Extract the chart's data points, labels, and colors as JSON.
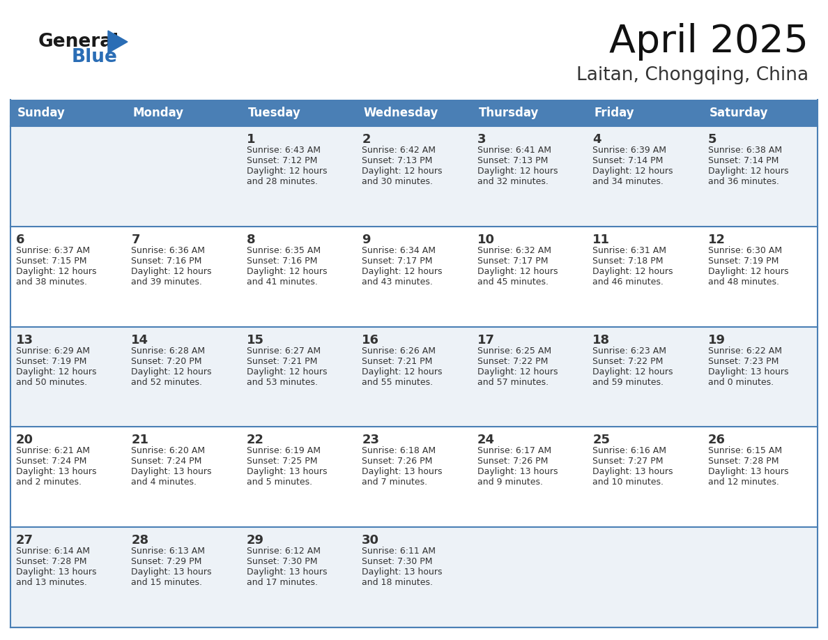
{
  "title": "April 2025",
  "subtitle": "Laitan, Chongqing, China",
  "header_bg": "#4a7fb5",
  "header_text_color": "#ffffff",
  "row_bg_odd": "#edf2f7",
  "row_bg_even": "#ffffff",
  "row_line_color": "#4a7fb5",
  "text_color": "#333333",
  "days_of_week": [
    "Sunday",
    "Monday",
    "Tuesday",
    "Wednesday",
    "Thursday",
    "Friday",
    "Saturday"
  ],
  "logo_general_color": "#1a1a1a",
  "logo_blue_color": "#2a6db5",
  "calendar": [
    [
      {
        "day": "",
        "sunrise": "",
        "sunset": "",
        "daylight": ""
      },
      {
        "day": "",
        "sunrise": "",
        "sunset": "",
        "daylight": ""
      },
      {
        "day": "1",
        "sunrise": "Sunrise: 6:43 AM",
        "sunset": "Sunset: 7:12 PM",
        "daylight": "Daylight: 12 hours\nand 28 minutes."
      },
      {
        "day": "2",
        "sunrise": "Sunrise: 6:42 AM",
        "sunset": "Sunset: 7:13 PM",
        "daylight": "Daylight: 12 hours\nand 30 minutes."
      },
      {
        "day": "3",
        "sunrise": "Sunrise: 6:41 AM",
        "sunset": "Sunset: 7:13 PM",
        "daylight": "Daylight: 12 hours\nand 32 minutes."
      },
      {
        "day": "4",
        "sunrise": "Sunrise: 6:39 AM",
        "sunset": "Sunset: 7:14 PM",
        "daylight": "Daylight: 12 hours\nand 34 minutes."
      },
      {
        "day": "5",
        "sunrise": "Sunrise: 6:38 AM",
        "sunset": "Sunset: 7:14 PM",
        "daylight": "Daylight: 12 hours\nand 36 minutes."
      }
    ],
    [
      {
        "day": "6",
        "sunrise": "Sunrise: 6:37 AM",
        "sunset": "Sunset: 7:15 PM",
        "daylight": "Daylight: 12 hours\nand 38 minutes."
      },
      {
        "day": "7",
        "sunrise": "Sunrise: 6:36 AM",
        "sunset": "Sunset: 7:16 PM",
        "daylight": "Daylight: 12 hours\nand 39 minutes."
      },
      {
        "day": "8",
        "sunrise": "Sunrise: 6:35 AM",
        "sunset": "Sunset: 7:16 PM",
        "daylight": "Daylight: 12 hours\nand 41 minutes."
      },
      {
        "day": "9",
        "sunrise": "Sunrise: 6:34 AM",
        "sunset": "Sunset: 7:17 PM",
        "daylight": "Daylight: 12 hours\nand 43 minutes."
      },
      {
        "day": "10",
        "sunrise": "Sunrise: 6:32 AM",
        "sunset": "Sunset: 7:17 PM",
        "daylight": "Daylight: 12 hours\nand 45 minutes."
      },
      {
        "day": "11",
        "sunrise": "Sunrise: 6:31 AM",
        "sunset": "Sunset: 7:18 PM",
        "daylight": "Daylight: 12 hours\nand 46 minutes."
      },
      {
        "day": "12",
        "sunrise": "Sunrise: 6:30 AM",
        "sunset": "Sunset: 7:19 PM",
        "daylight": "Daylight: 12 hours\nand 48 minutes."
      }
    ],
    [
      {
        "day": "13",
        "sunrise": "Sunrise: 6:29 AM",
        "sunset": "Sunset: 7:19 PM",
        "daylight": "Daylight: 12 hours\nand 50 minutes."
      },
      {
        "day": "14",
        "sunrise": "Sunrise: 6:28 AM",
        "sunset": "Sunset: 7:20 PM",
        "daylight": "Daylight: 12 hours\nand 52 minutes."
      },
      {
        "day": "15",
        "sunrise": "Sunrise: 6:27 AM",
        "sunset": "Sunset: 7:21 PM",
        "daylight": "Daylight: 12 hours\nand 53 minutes."
      },
      {
        "day": "16",
        "sunrise": "Sunrise: 6:26 AM",
        "sunset": "Sunset: 7:21 PM",
        "daylight": "Daylight: 12 hours\nand 55 minutes."
      },
      {
        "day": "17",
        "sunrise": "Sunrise: 6:25 AM",
        "sunset": "Sunset: 7:22 PM",
        "daylight": "Daylight: 12 hours\nand 57 minutes."
      },
      {
        "day": "18",
        "sunrise": "Sunrise: 6:23 AM",
        "sunset": "Sunset: 7:22 PM",
        "daylight": "Daylight: 12 hours\nand 59 minutes."
      },
      {
        "day": "19",
        "sunrise": "Sunrise: 6:22 AM",
        "sunset": "Sunset: 7:23 PM",
        "daylight": "Daylight: 13 hours\nand 0 minutes."
      }
    ],
    [
      {
        "day": "20",
        "sunrise": "Sunrise: 6:21 AM",
        "sunset": "Sunset: 7:24 PM",
        "daylight": "Daylight: 13 hours\nand 2 minutes."
      },
      {
        "day": "21",
        "sunrise": "Sunrise: 6:20 AM",
        "sunset": "Sunset: 7:24 PM",
        "daylight": "Daylight: 13 hours\nand 4 minutes."
      },
      {
        "day": "22",
        "sunrise": "Sunrise: 6:19 AM",
        "sunset": "Sunset: 7:25 PM",
        "daylight": "Daylight: 13 hours\nand 5 minutes."
      },
      {
        "day": "23",
        "sunrise": "Sunrise: 6:18 AM",
        "sunset": "Sunset: 7:26 PM",
        "daylight": "Daylight: 13 hours\nand 7 minutes."
      },
      {
        "day": "24",
        "sunrise": "Sunrise: 6:17 AM",
        "sunset": "Sunset: 7:26 PM",
        "daylight": "Daylight: 13 hours\nand 9 minutes."
      },
      {
        "day": "25",
        "sunrise": "Sunrise: 6:16 AM",
        "sunset": "Sunset: 7:27 PM",
        "daylight": "Daylight: 13 hours\nand 10 minutes."
      },
      {
        "day": "26",
        "sunrise": "Sunrise: 6:15 AM",
        "sunset": "Sunset: 7:28 PM",
        "daylight": "Daylight: 13 hours\nand 12 minutes."
      }
    ],
    [
      {
        "day": "27",
        "sunrise": "Sunrise: 6:14 AM",
        "sunset": "Sunset: 7:28 PM",
        "daylight": "Daylight: 13 hours\nand 13 minutes."
      },
      {
        "day": "28",
        "sunrise": "Sunrise: 6:13 AM",
        "sunset": "Sunset: 7:29 PM",
        "daylight": "Daylight: 13 hours\nand 15 minutes."
      },
      {
        "day": "29",
        "sunrise": "Sunrise: 6:12 AM",
        "sunset": "Sunset: 7:30 PM",
        "daylight": "Daylight: 13 hours\nand 17 minutes."
      },
      {
        "day": "30",
        "sunrise": "Sunrise: 6:11 AM",
        "sunset": "Sunset: 7:30 PM",
        "daylight": "Daylight: 13 hours\nand 18 minutes."
      },
      {
        "day": "",
        "sunrise": "",
        "sunset": "",
        "daylight": ""
      },
      {
        "day": "",
        "sunrise": "",
        "sunset": "",
        "daylight": ""
      },
      {
        "day": "",
        "sunrise": "",
        "sunset": "",
        "daylight": ""
      }
    ]
  ]
}
